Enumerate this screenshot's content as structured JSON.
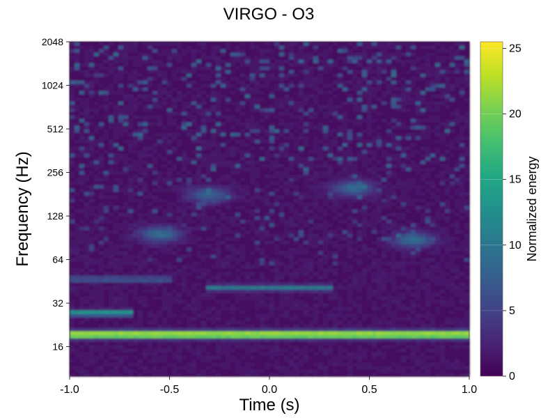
{
  "chart_data": {
    "type": "heatmap",
    "title": "VIRGO - O3",
    "xlabel": "Time (s)",
    "ylabel": "Frequency (Hz)",
    "colorbar_label": "Normalized energy",
    "colormap": "viridis",
    "xlim": [
      -1.0,
      1.0
    ],
    "ylim": [
      10,
      2048
    ],
    "yscale": "log2",
    "clim": [
      0,
      25.5
    ],
    "xticks": [
      -1.0,
      -0.5,
      0.0,
      0.5,
      1.0
    ],
    "xtick_labels": [
      "-1.0",
      "-0.5",
      "0.0",
      "0.5",
      "1.0"
    ],
    "yticks": [
      16,
      32,
      64,
      128,
      256,
      512,
      1024,
      2048
    ],
    "ytick_labels": [
      "16",
      "32",
      "64",
      "128",
      "256",
      "512",
      "1024",
      "2048"
    ],
    "cbar_ticks": [
      0,
      5,
      10,
      15,
      20,
      25
    ],
    "cbar_tick_labels": [
      "0",
      "5",
      "10",
      "15",
      "20",
      "25"
    ],
    "background_energy": 1.5,
    "features": [
      {
        "kind": "line",
        "freq_hz": 19.5,
        "t_start": -1.0,
        "t_end": 1.0,
        "energy": 25
      },
      {
        "kind": "line",
        "freq_hz": 27.5,
        "t_start": -1.0,
        "t_end": -0.7,
        "energy": 13
      },
      {
        "kind": "line",
        "freq_hz": 41,
        "t_start": -0.3,
        "t_end": 0.3,
        "energy": 9
      },
      {
        "kind": "line",
        "freq_hz": 47,
        "t_start": -1.0,
        "t_end": -0.5,
        "energy": 6
      },
      {
        "kind": "blob",
        "freq_hz": 96,
        "t": -0.55,
        "energy": 8
      },
      {
        "kind": "blob",
        "freq_hz": 88,
        "t": 0.72,
        "energy": 8
      },
      {
        "kind": "blob",
        "freq_hz": 200,
        "t": 0.42,
        "energy": 8
      },
      {
        "kind": "blob",
        "freq_hz": 180,
        "t": -0.3,
        "energy": 7
      }
    ],
    "grid": false,
    "legend": "none"
  }
}
